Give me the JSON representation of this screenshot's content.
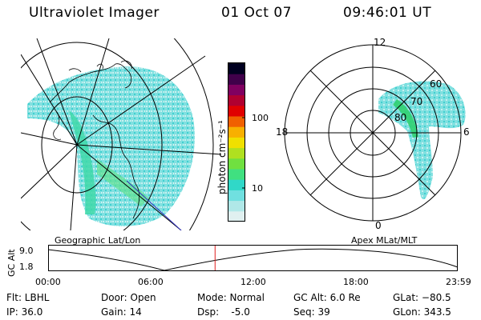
{
  "header": {
    "instrument": "Ultraviolet Imager",
    "date": "01 Oct 07",
    "time": "09:46:01 UT"
  },
  "left_panel": {
    "caption": "Geographic Lat/Lon"
  },
  "right_panel": {
    "caption": "Apex MLat/MLT",
    "mlt_labels": [
      "12",
      "18",
      "6",
      "0"
    ],
    "mlat_labels": [
      "60",
      "70",
      "80"
    ]
  },
  "colorbar": {
    "unit_label": "photon cm⁻²s⁻¹",
    "ticks": [
      "100",
      "10"
    ],
    "colors": [
      "#e0f0f0",
      "#b0e8e8",
      "#70e0e0",
      "#30d8c8",
      "#40e080",
      "#70e040",
      "#b0e020",
      "#f0e000",
      "#f8b000",
      "#f06000",
      "#e00000",
      "#b00030",
      "#800060",
      "#40004a",
      "#000020"
    ]
  },
  "timeline": {
    "axis_label": "GC Alt",
    "y_ticks": [
      "9.0",
      "1.8"
    ],
    "x_ticks": [
      "00:00",
      "06:00",
      "12:00",
      "18:00",
      "23:59"
    ],
    "current_time_fraction": 0.4076
  },
  "footer": {
    "flt": "Flt: LBHL",
    "ip": "IP: 36.0",
    "door": "Door: Open",
    "gain": "Gain: 14",
    "mode": "Mode: Normal",
    "dsp": "Dsp:    -5.0",
    "gc_alt": "GC Alt: 6.0 Re",
    "seq": "Seq: 39",
    "glat": "GLat: −80.5",
    "glon": "GLon: 343.5"
  }
}
